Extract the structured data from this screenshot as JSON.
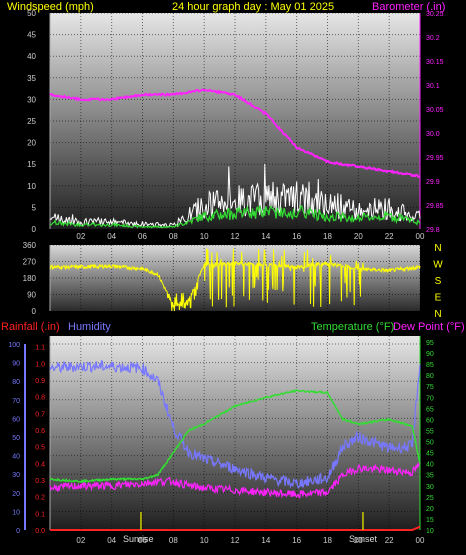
{
  "header": {
    "left_title": "Windspeed (mph)",
    "center_title": "24 hour graph day : May 01 2025",
    "right_title": "Barometer (.in)"
  },
  "bottom_header": {
    "rainfall_label": "Rainfall (.in)",
    "humidity_label": "Humidity",
    "temperature_label": "Temperature (°F)",
    "dewpoint_label": "Dew Point (°F)"
  },
  "compass": [
    "N",
    "W",
    "S",
    "E",
    "N"
  ],
  "x_ticks": [
    "02",
    "04",
    "06",
    "08",
    "10",
    "12",
    "14",
    "16",
    "18",
    "20",
    "22",
    "00"
  ],
  "sunrise_label": "Sunrise",
  "sunset_label": "Sunset",
  "colors": {
    "wind": "#ffffff",
    "gust_avg": "#33dd33",
    "barometer": "#ff22ff",
    "direction": "#ffff00",
    "humidity": "#7777ff",
    "temperature": "#33dd33",
    "dewpoint": "#ff22ff",
    "rain": "#ff2222",
    "markers": "#cccc00",
    "title": "#ffff00",
    "axis_text": "#cccccc"
  },
  "chart_data": [
    {
      "type": "line",
      "title": "24 hour graph day : May 01 2025",
      "ylabel": "Windspeed (mph)",
      "ylabel_right": "Barometer (.in)",
      "ylim": [
        0,
        50
      ],
      "ylim_right": [
        29.8,
        30.25
      ],
      "yticks": [
        0,
        5,
        10,
        15,
        20,
        25,
        30,
        35,
        40,
        45,
        50
      ],
      "yticks_right": [
        29.8,
        29.85,
        29.9,
        29.95,
        30.0,
        30.05,
        30.1,
        30.15,
        30.2,
        30.25
      ],
      "x": [
        0,
        2,
        4,
        6,
        8,
        10,
        12,
        14,
        16,
        18,
        20,
        22,
        24
      ],
      "series": [
        {
          "values": [
            3,
            2,
            2,
            1.5,
            1,
            7,
            8,
            9,
            9,
            7,
            6,
            6,
            3
          ]
        },
        {
          "values": [
            1.5,
            1,
            1,
            0.5,
            0.5,
            3,
            3.5,
            4,
            4,
            3,
            2.5,
            3,
            1.5
          ]
        },
        {
          "axis": "right",
          "values": [
            30.08,
            30.07,
            30.07,
            30.08,
            30.08,
            30.09,
            30.08,
            30.04,
            29.97,
            29.94,
            29.93,
            29.92,
            29.91
          ]
        }
      ]
    },
    {
      "type": "scatter",
      "ylim": [
        0,
        360
      ],
      "yticks": [
        0,
        90,
        180,
        270,
        360
      ],
      "x": [
        0,
        2,
        4,
        6,
        7,
        8,
        9,
        10,
        12,
        14,
        16,
        18,
        20,
        22,
        24
      ],
      "series": [
        {
          "values": [
            240,
            240,
            245,
            230,
            200,
            30,
            60,
            250,
            260,
            250,
            240,
            260,
            230,
            220,
            240
          ]
        }
      ]
    },
    {
      "type": "line",
      "xlim": [
        0,
        24
      ],
      "ylim_left_rain": [
        0,
        1.2
      ],
      "ylim_left_humidity": [
        0,
        100
      ],
      "ylim_right": [
        10,
        95
      ],
      "yticks_rain": [
        0,
        0.1,
        0.2,
        0.3,
        0.4,
        0.5,
        0.6,
        0.7,
        0.8,
        0.9,
        1.0,
        1.1
      ],
      "yticks_humidity": [
        0,
        10,
        20,
        30,
        40,
        50,
        60,
        70,
        80,
        90,
        100
      ],
      "yticks_right": [
        10,
        15,
        20,
        25,
        30,
        35,
        40,
        45,
        50,
        55,
        60,
        65,
        70,
        75,
        80,
        85,
        90,
        95
      ],
      "x": [
        0,
        2,
        4,
        6,
        7,
        8,
        9,
        10,
        12,
        14,
        16,
        18,
        19,
        20,
        22,
        23.5,
        24
      ],
      "series": [
        {
          "name": "Humidity",
          "values": [
            87,
            88,
            88,
            87,
            80,
            55,
            42,
            38,
            33,
            28,
            25,
            28,
            45,
            50,
            44,
            45,
            90
          ]
        },
        {
          "name": "Temperature (°F)",
          "values": [
            33,
            32,
            33,
            33,
            35,
            45,
            55,
            58,
            66,
            70,
            73,
            72,
            60,
            58,
            60,
            57,
            40
          ]
        },
        {
          "name": "Dew Point (°F)",
          "values": [
            29,
            30,
            30,
            31,
            32,
            32,
            30,
            29,
            28,
            27,
            26,
            27,
            35,
            38,
            37,
            36,
            40
          ]
        },
        {
          "name": "Rainfall (.in)",
          "values": [
            0,
            0,
            0,
            0,
            0,
            0,
            0,
            0,
            0,
            0,
            0,
            0,
            0,
            0,
            0,
            0,
            0.02
          ]
        }
      ],
      "sunrise_hour": 5.9,
      "sunset_hour": 20.3
    }
  ]
}
